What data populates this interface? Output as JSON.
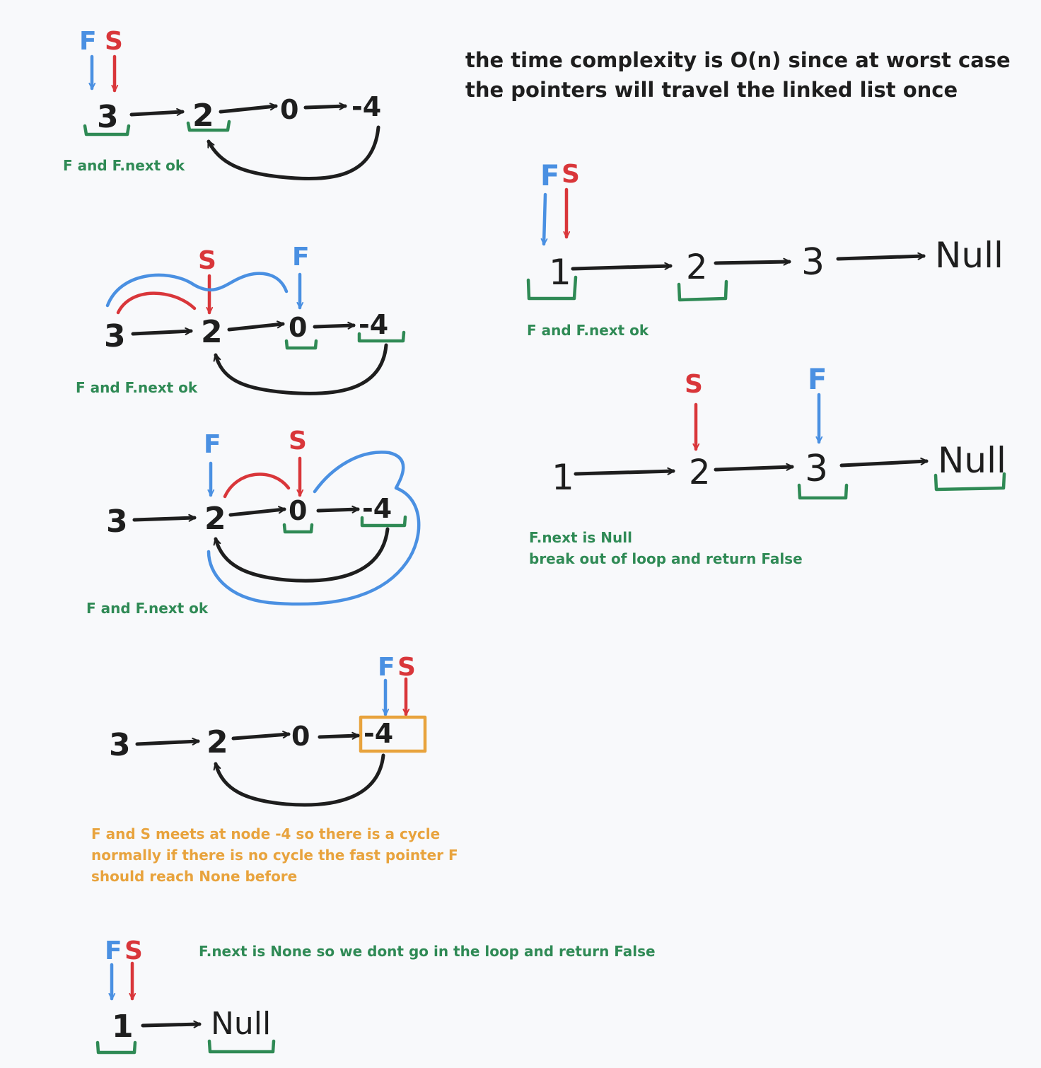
{
  "colors": {
    "background": "#f8f9fb",
    "node_ink": "#1e1e1e",
    "fast_pointer": "#4a90e2",
    "slow_pointer": "#d9363a",
    "check_marker": "#2f8a55",
    "meet_highlight": "#e8a33d"
  },
  "pointers": {
    "fast": "F",
    "slow": "S"
  },
  "complexity_note": {
    "line1": "the time complexity is O(n) since at worst case",
    "line2": "the pointers will travel the linked list once"
  },
  "cycle_example": {
    "nodes": [
      "3",
      "2",
      "0",
      "-4"
    ],
    "steps": [
      {
        "note": "F and F.next ok"
      },
      {
        "note": "F and F.next ok"
      },
      {
        "note": "F and F.next ok"
      },
      {
        "note_lines": [
          "F and S meets at node -4 so there is a cycle",
          "normally if there is no cycle the fast pointer F",
          "should reach None before"
        ]
      }
    ]
  },
  "no_cycle_example": {
    "nodes": [
      "1",
      "2",
      "3",
      "Null"
    ],
    "steps": [
      {
        "note": "F and F.next ok"
      },
      {
        "note_lines": [
          "F.next is Null",
          "break out of loop and return False"
        ]
      }
    ]
  },
  "single_node_example": {
    "nodes": [
      "1",
      "Null"
    ],
    "note": "F.next is None so we dont go in the loop and return False"
  }
}
